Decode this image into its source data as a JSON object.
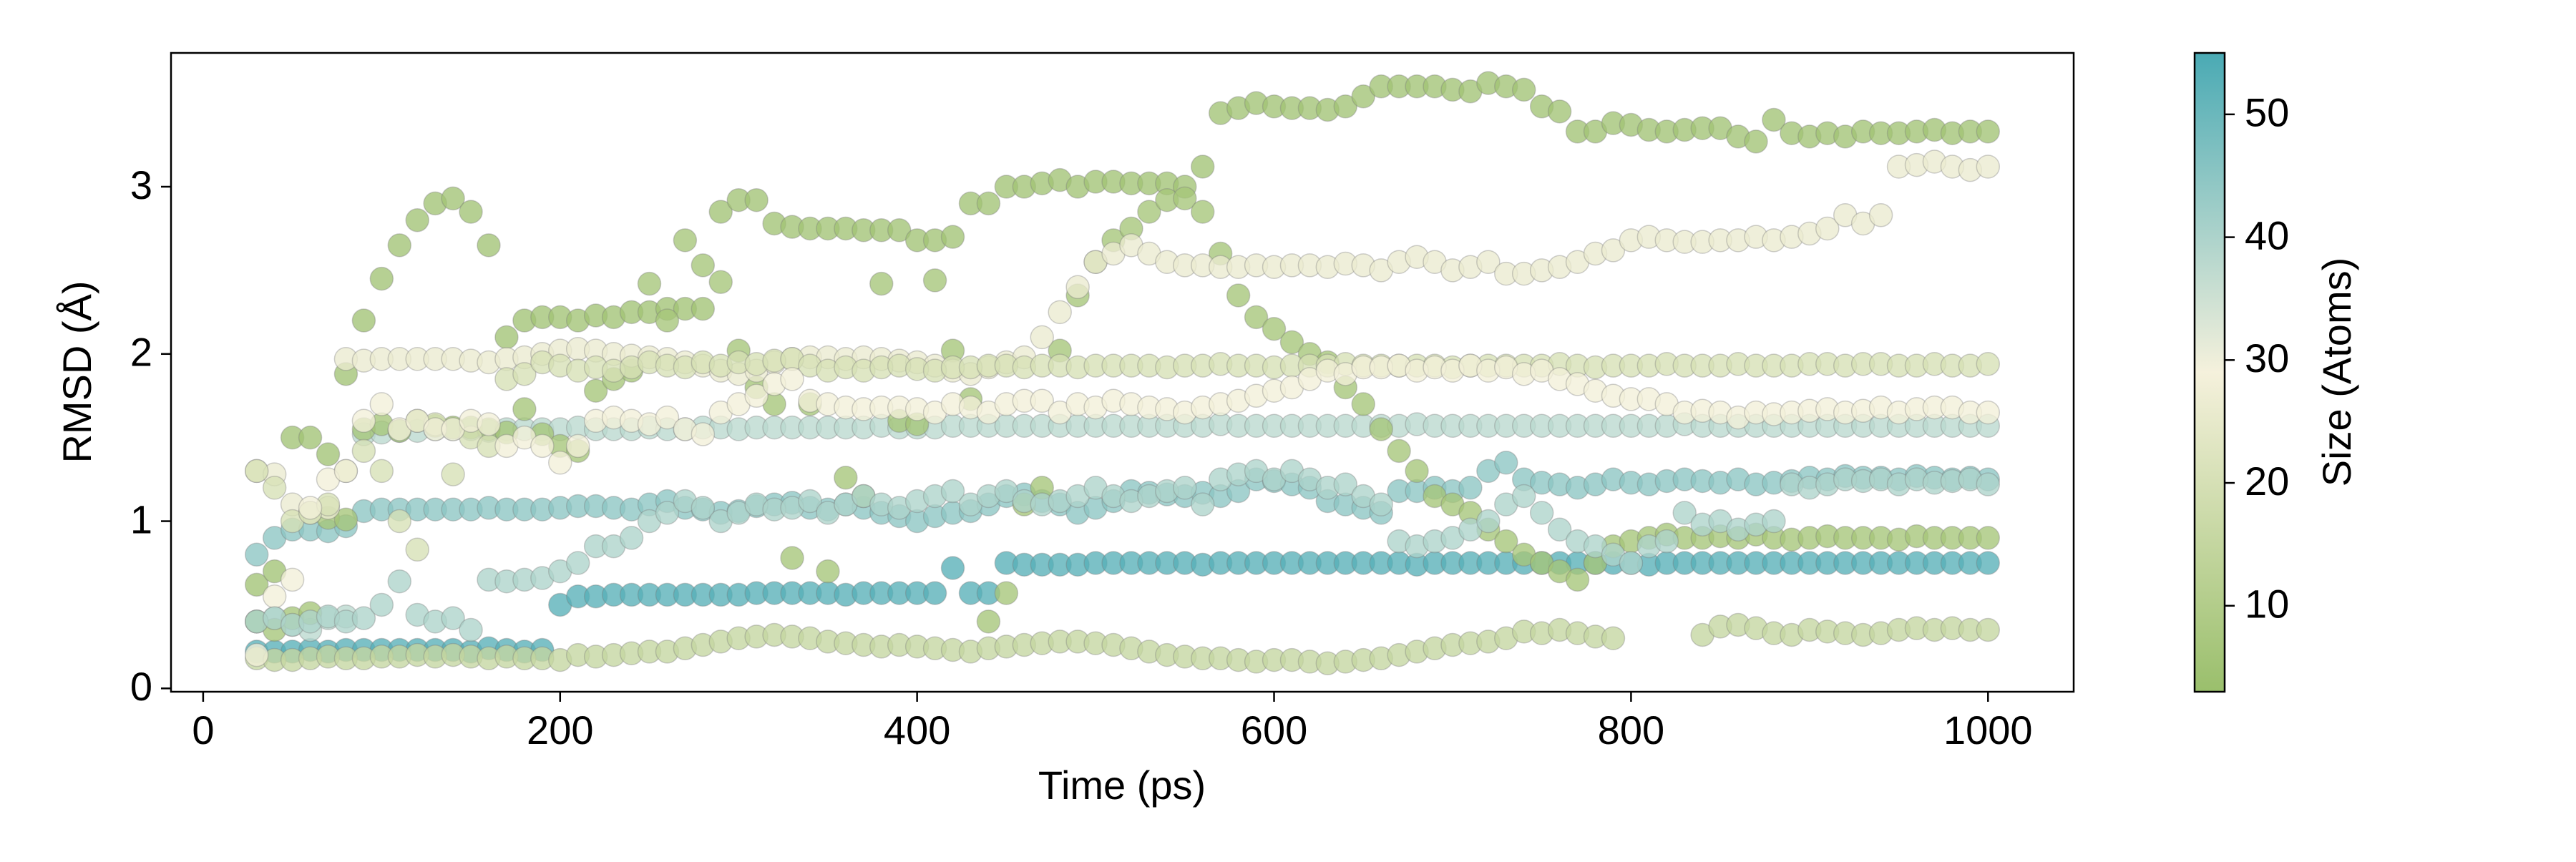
{
  "chart_data": {
    "type": "scatter",
    "xlabel": "Time (ps)",
    "ylabel": "RMSD (Å)",
    "xlim": [
      -18,
      1048
    ],
    "ylim": [
      -0.02,
      3.8
    ],
    "xticks": [
      0,
      200,
      400,
      600,
      800,
      1000
    ],
    "yticks": [
      0,
      1,
      2,
      3
    ],
    "colorbar": {
      "label": "Size (Atoms)",
      "lim": [
        3,
        55
      ],
      "ticks": [
        10,
        20,
        30,
        40,
        50
      ],
      "colors": [
        "#9abf6c",
        "#f5f1dc",
        "#4aaab4"
      ]
    },
    "x": [
      30,
      40,
      50,
      60,
      70,
      80,
      90,
      100,
      110,
      120,
      130,
      140,
      150,
      160,
      170,
      180,
      190,
      200,
      210,
      220,
      230,
      240,
      250,
      260,
      270,
      280,
      290,
      300,
      310,
      320,
      330,
      340,
      350,
      360,
      370,
      380,
      390,
      400,
      410,
      420,
      430,
      440,
      450,
      460,
      470,
      480,
      490,
      500,
      510,
      520,
      530,
      540,
      550,
      560,
      570,
      580,
      590,
      600,
      610,
      620,
      630,
      640,
      650,
      660,
      670,
      680,
      690,
      700,
      710,
      720,
      730,
      740,
      750,
      760,
      770,
      780,
      790,
      800,
      810,
      820,
      830,
      840,
      850,
      860,
      870,
      880,
      890,
      900,
      910,
      920,
      930,
      940,
      950,
      960,
      970,
      980,
      990,
      1000
    ],
    "series": [
      {
        "size": 53,
        "values": [
          0.22,
          0.22,
          0.22,
          0.23,
          0.22,
          0.23,
          0.23,
          0.23,
          0.23,
          0.23,
          0.23,
          0.23,
          0.22,
          0.24,
          0.23,
          0.22,
          0.23,
          0.5,
          0.55,
          0.55,
          0.56,
          0.56,
          0.56,
          0.56,
          0.56,
          0.56,
          0.56,
          0.56,
          0.57,
          0.57,
          0.57,
          0.57,
          0.57,
          0.56,
          0.57,
          0.57,
          0.57,
          0.57,
          0.57,
          0.72,
          0.57,
          0.57,
          0.75,
          0.74,
          0.74,
          0.74,
          0.74,
          0.75,
          0.75,
          0.75,
          0.75,
          0.75,
          0.75,
          0.74,
          0.75,
          0.75,
          0.75,
          0.75,
          0.75,
          0.75,
          0.75,
          0.75,
          0.75,
          0.75,
          0.75,
          0.74,
          0.75,
          0.75,
          0.75,
          0.75,
          0.75,
          0.75,
          0.75,
          0.75,
          0.75,
          0.75,
          0.75,
          0.75,
          0.74,
          0.75,
          0.75,
          0.75,
          0.75,
          0.75,
          0.75,
          0.75,
          0.75,
          0.75,
          0.75,
          0.75,
          0.75,
          0.75,
          0.75,
          0.75,
          0.75,
          0.75,
          0.75,
          0.75
        ]
      },
      {
        "size": 45,
        "values": [
          0.8,
          0.9,
          0.95,
          0.95,
          0.94,
          0.97,
          1.06,
          1.07,
          1.07,
          1.07,
          1.07,
          1.07,
          1.07,
          1.08,
          1.07,
          1.07,
          1.07,
          1.08,
          1.09,
          1.09,
          1.08,
          1.07,
          1.1,
          1.12,
          1.08,
          1.07,
          1.05,
          1.06,
          1.09,
          1.1,
          1.11,
          1.08,
          1.07,
          1.1,
          1.08,
          1.05,
          1.03,
          1.0,
          1.03,
          1.05,
          1.06,
          1.1,
          1.15,
          1.16,
          1.12,
          1.1,
          1.05,
          1.08,
          1.12,
          1.18,
          1.17,
          1.16,
          1.15,
          1.17,
          1.15,
          1.18,
          1.25,
          1.24,
          1.22,
          1.2,
          1.12,
          1.1,
          1.08,
          1.05,
          1.18,
          1.18,
          1.2,
          1.18,
          1.2,
          1.3,
          1.35,
          1.25,
          1.23,
          1.22,
          1.2,
          1.22,
          1.25,
          1.23,
          1.22,
          1.24,
          1.25,
          1.24,
          1.23,
          1.25,
          1.22,
          1.23,
          1.24,
          1.26,
          1.25,
          1.27,
          1.26,
          1.26,
          1.25,
          1.27,
          1.26,
          1.25,
          1.26,
          1.25
        ]
      },
      {
        "size": 38,
        "values": [
          0.4,
          0.42,
          0.38,
          0.35,
          0.42,
          0.43,
          1.52,
          1.53,
          1.54,
          1.54,
          1.55,
          1.55,
          1.55,
          1.54,
          1.55,
          1.55,
          1.55,
          1.55,
          1.56,
          1.55,
          1.55,
          1.55,
          1.56,
          1.55,
          1.55,
          1.56,
          1.56,
          1.55,
          1.56,
          1.56,
          1.56,
          1.56,
          1.56,
          1.56,
          1.56,
          1.57,
          1.56,
          1.56,
          1.56,
          1.57,
          1.57,
          1.57,
          1.57,
          1.57,
          1.57,
          1.57,
          1.57,
          1.57,
          1.57,
          1.57,
          1.57,
          1.57,
          1.57,
          1.57,
          1.58,
          1.57,
          1.57,
          1.57,
          1.57,
          1.57,
          1.57,
          1.57,
          1.57,
          1.57,
          1.57,
          1.58,
          1.57,
          1.57,
          1.57,
          1.57,
          1.57,
          1.57,
          1.57,
          1.57,
          1.57,
          1.57,
          1.57,
          1.57,
          1.57,
          1.57,
          1.58,
          1.57,
          1.57,
          1.57,
          1.57,
          1.57,
          1.57,
          1.57,
          1.57,
          1.57,
          1.57,
          1.57,
          1.57,
          1.57,
          1.57,
          1.57,
          1.57,
          1.57
        ]
      },
      {
        "size": 15,
        "values": [
          0.18,
          0.17,
          0.17,
          0.18,
          0.19,
          0.18,
          0.18,
          0.19,
          0.19,
          0.2,
          0.19,
          0.2,
          0.19,
          0.18,
          0.19,
          0.18,
          0.18,
          0.17,
          0.2,
          0.19,
          0.2,
          0.21,
          0.22,
          0.22,
          0.24,
          0.26,
          0.28,
          0.3,
          0.31,
          0.32,
          0.31,
          0.3,
          0.28,
          0.27,
          0.26,
          0.25,
          0.26,
          0.25,
          0.24,
          0.23,
          0.22,
          0.24,
          0.25,
          0.26,
          0.27,
          0.28,
          0.28,
          0.27,
          0.26,
          0.24,
          0.22,
          0.2,
          0.19,
          0.18,
          0.18,
          0.17,
          0.16,
          0.17,
          0.17,
          0.16,
          0.15,
          0.16,
          0.17,
          0.18,
          0.2,
          0.22,
          0.24,
          0.26,
          0.27,
          0.28,
          0.3,
          0.34,
          0.33,
          0.35,
          0.33,
          0.31,
          0.3,
          null,
          null,
          null,
          null,
          0.32,
          0.37,
          0.38,
          0.36,
          0.33,
          0.32,
          0.35,
          0.34,
          0.33,
          0.32,
          0.33,
          0.35,
          0.36,
          0.35,
          0.36,
          0.35,
          0.35
        ]
      },
      {
        "size": 5,
        "values": [
          0.62,
          0.7,
          1.5,
          1.5,
          1.4,
          1.88,
          2.2,
          2.45,
          2.65,
          2.8,
          2.9,
          2.93,
          2.85,
          2.65,
          2.1,
          2.2,
          2.22,
          2.22,
          2.2,
          2.23,
          2.22,
          2.25,
          2.25,
          2.27,
          2.27,
          2.27,
          2.85,
          2.92,
          2.92,
          2.78,
          2.76,
          2.75,
          2.75,
          2.75,
          2.74,
          2.74,
          2.74,
          2.68,
          2.68,
          2.7,
          2.9,
          2.9,
          3.0,
          3.0,
          3.02,
          3.04,
          3.0,
          3.03,
          3.03,
          3.02,
          3.02,
          3.02,
          3.0,
          3.12,
          3.44,
          3.47,
          3.5,
          3.48,
          3.47,
          3.47,
          3.46,
          3.48,
          3.54,
          3.6,
          3.6,
          3.6,
          3.6,
          3.58,
          3.57,
          3.62,
          3.6,
          3.58,
          3.48,
          3.45,
          3.33,
          3.33,
          3.38,
          3.37,
          3.34,
          3.33,
          3.34,
          3.35,
          3.35,
          3.3,
          3.27,
          3.4,
          3.32,
          3.3,
          3.32,
          3.3,
          3.33,
          3.32,
          3.32,
          3.33,
          3.34,
          3.32,
          3.33,
          3.33
        ]
      },
      {
        "size": 6,
        "values": [
          0.4,
          0.35,
          0.42,
          0.45,
          1.02,
          1.01,
          1.55,
          1.58,
          1.54,
          1.6,
          1.57,
          1.56,
          1.56,
          1.55,
          1.53,
          1.67,
          1.52,
          1.45,
          1.42,
          1.78,
          1.85,
          1.9,
          2.42,
          2.2,
          2.68,
          2.53,
          2.43,
          2.02,
          1.8,
          1.7,
          0.78,
          1.7,
          0.7,
          1.26,
          1.15,
          2.42,
          1.6,
          1.58,
          2.44,
          2.02,
          1.73,
          0.4,
          0.57,
          1.1,
          1.2,
          2.02,
          2.35,
          2.55,
          2.68,
          2.75,
          2.85,
          2.92,
          2.93,
          2.85,
          2.6,
          2.35,
          2.22,
          2.15,
          2.07,
          2.0,
          1.95,
          1.8,
          1.7,
          1.55,
          1.42,
          1.3,
          1.15,
          1.1,
          1.05,
          0.95,
          0.88,
          0.8,
          0.75,
          0.7,
          0.65,
          0.75,
          0.85,
          0.88,
          0.9,
          0.92,
          0.9,
          0.9,
          0.91,
          0.9,
          0.92,
          0.9,
          0.89,
          0.9,
          0.91,
          0.9,
          0.9,
          0.9,
          0.89,
          0.91,
          0.9,
          0.9,
          0.9,
          0.9
        ]
      },
      {
        "size": 26,
        "values": [
          1.3,
          1.28,
          1.1,
          1.05,
          1.08,
          1.97,
          1.96,
          1.97,
          1.97,
          1.97,
          1.97,
          1.97,
          1.96,
          1.95,
          1.97,
          1.98,
          2.0,
          2.02,
          2.03,
          2.02,
          2.0,
          1.99,
          1.98,
          1.97,
          1.95,
          1.93,
          1.9,
          1.88,
          1.9,
          1.95,
          1.97,
          1.98,
          1.98,
          1.97,
          1.98,
          1.97,
          1.96,
          1.95,
          1.93,
          1.9,
          1.88,
          1.92,
          1.95,
          1.98,
          2.1,
          2.25,
          2.4,
          2.55,
          2.6,
          2.65,
          2.6,
          2.55,
          2.53,
          2.53,
          2.52,
          2.52,
          2.53,
          2.52,
          2.53,
          2.53,
          2.52,
          2.54,
          2.53,
          2.5,
          2.55,
          2.58,
          2.55,
          2.5,
          2.52,
          2.55,
          2.48,
          2.48,
          2.5,
          2.52,
          2.55,
          2.6,
          2.62,
          2.68,
          2.7,
          2.68,
          2.67,
          2.67,
          2.68,
          2.68,
          2.7,
          2.68,
          2.7,
          2.72,
          2.75,
          2.83,
          2.78,
          2.83,
          3.12,
          3.13,
          3.15,
          3.12,
          3.1,
          3.12
        ]
      },
      {
        "size": 20,
        "values": [
          1.3,
          1.2,
          1.0,
          1.05,
          1.1,
          1.3,
          1.42,
          1.3,
          1.0,
          0.83,
          1.58,
          1.28,
          1.5,
          1.45,
          1.85,
          1.88,
          1.95,
          1.93,
          1.9,
          1.92,
          1.9,
          1.92,
          1.95,
          1.93,
          1.92,
          1.95,
          1.93,
          1.95,
          1.94,
          1.96,
          1.97,
          1.93,
          1.9,
          1.92,
          1.9,
          1.92,
          1.93,
          1.91,
          1.9,
          1.92,
          1.92,
          1.93,
          1.93,
          1.92,
          1.93,
          1.93,
          1.92,
          1.93,
          1.93,
          1.93,
          1.93,
          1.92,
          1.93,
          1.93,
          1.94,
          1.93,
          1.93,
          1.92,
          1.93,
          1.93,
          1.93,
          1.94,
          1.93,
          1.93,
          1.93,
          1.93,
          1.93,
          1.92,
          1.93,
          1.93,
          1.93,
          1.93,
          1.93,
          1.94,
          1.93,
          1.92,
          1.93,
          1.93,
          1.93,
          1.94,
          1.93,
          1.93,
          1.93,
          1.94,
          1.93,
          1.93,
          1.93,
          1.94,
          1.94,
          1.93,
          1.94,
          1.94,
          1.93,
          1.93,
          1.94,
          1.93,
          1.93,
          1.94
        ]
      },
      {
        "size": 28,
        "values": [
          0.2,
          0.55,
          0.65,
          1.08,
          1.25,
          1.3,
          1.6,
          1.7,
          1.55,
          1.6,
          1.55,
          1.55,
          1.6,
          1.58,
          1.45,
          1.5,
          1.45,
          1.35,
          1.45,
          1.6,
          1.62,
          1.6,
          1.58,
          1.62,
          1.55,
          1.52,
          1.65,
          1.7,
          1.75,
          1.82,
          1.85,
          1.72,
          1.7,
          1.68,
          1.67,
          1.68,
          1.68,
          1.67,
          1.65,
          1.7,
          1.68,
          1.65,
          1.7,
          1.72,
          1.72,
          1.65,
          1.7,
          1.68,
          1.72,
          1.7,
          1.68,
          1.67,
          1.65,
          1.68,
          1.7,
          1.72,
          1.75,
          1.78,
          1.8,
          1.85,
          1.9,
          1.88,
          1.92,
          1.92,
          1.93,
          1.9,
          1.92,
          1.9,
          1.93,
          1.9,
          1.92,
          1.88,
          1.9,
          1.85,
          1.82,
          1.78,
          1.75,
          1.73,
          1.73,
          1.7,
          1.65,
          1.66,
          1.65,
          1.62,
          1.65,
          1.64,
          1.65,
          1.66,
          1.67,
          1.65,
          1.66,
          1.68,
          1.65,
          1.67,
          1.68,
          1.68,
          1.65,
          1.65
        ]
      },
      {
        "size": 40,
        "values": [
          0.4,
          0.42,
          0.38,
          0.4,
          0.43,
          0.4,
          0.42,
          0.5,
          0.64,
          0.44,
          0.4,
          0.42,
          0.35,
          0.65,
          0.64,
          0.65,
          0.66,
          0.7,
          0.75,
          0.85,
          0.85,
          0.9,
          1.0,
          1.05,
          1.12,
          1.08,
          1.0,
          1.05,
          1.1,
          1.07,
          1.08,
          1.12,
          1.05,
          1.1,
          1.15,
          1.1,
          1.08,
          1.12,
          1.15,
          1.18,
          1.1,
          1.15,
          1.18,
          1.12,
          1.1,
          1.12,
          1.15,
          1.2,
          1.15,
          1.12,
          1.15,
          1.18,
          1.2,
          1.1,
          1.25,
          1.28,
          1.3,
          1.25,
          1.3,
          1.25,
          1.2,
          1.22,
          1.15,
          1.1,
          0.88,
          0.85,
          0.88,
          0.9,
          0.95,
          1.0,
          1.1,
          1.15,
          1.05,
          0.95,
          0.88,
          0.85,
          0.8,
          0.75,
          0.85,
          0.88,
          1.05,
          0.98,
          1.0,
          0.95,
          0.98,
          1.0,
          1.22,
          1.2,
          1.22,
          1.25,
          1.24,
          1.25,
          1.22,
          1.25,
          1.23,
          1.24,
          1.25,
          1.22
        ]
      }
    ]
  }
}
